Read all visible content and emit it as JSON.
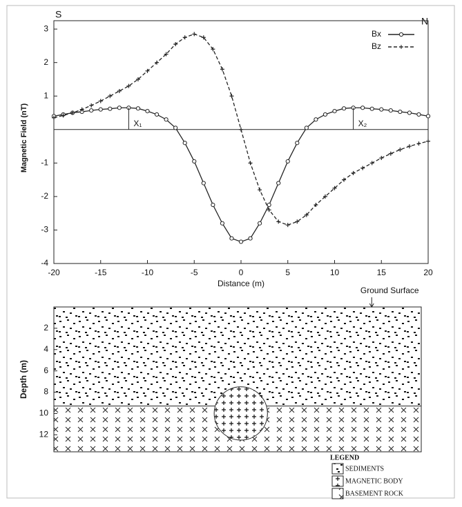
{
  "chart_data": [
    {
      "type": "line",
      "corner_labels": [
        "S",
        "N"
      ],
      "xlabel": "Distance (m)",
      "ylabel": "Magnetic Field (nT)",
      "x": [
        -20,
        -19,
        -18,
        -17,
        -16,
        -15,
        -14,
        -13,
        -12,
        -11,
        -10,
        -9,
        -8,
        -7,
        -6,
        -5,
        -4,
        -3,
        -2,
        -1,
        0,
        1,
        2,
        3,
        4,
        5,
        6,
        7,
        8,
        9,
        10,
        11,
        12,
        13,
        14,
        15,
        16,
        17,
        18,
        19,
        20
      ],
      "series": [
        {
          "name": "Bx",
          "color": "#222222",
          "marker": "circle",
          "dash": false,
          "values": [
            0.4,
            0.45,
            0.5,
            0.53,
            0.57,
            0.6,
            0.62,
            0.65,
            0.65,
            0.63,
            0.55,
            0.45,
            0.3,
            0.05,
            -0.4,
            -0.95,
            -1.6,
            -2.25,
            -2.8,
            -3.25,
            -3.35,
            -3.25,
            -2.8,
            -2.25,
            -1.6,
            -0.95,
            -0.4,
            0.05,
            0.3,
            0.45,
            0.55,
            0.63,
            0.65,
            0.65,
            0.62,
            0.6,
            0.57,
            0.53,
            0.5,
            0.45,
            0.4
          ]
        },
        {
          "name": "Bz",
          "color": "#222222",
          "marker": "plus",
          "dash": true,
          "values": [
            0.35,
            0.42,
            0.5,
            0.6,
            0.72,
            0.85,
            1.0,
            1.15,
            1.3,
            1.5,
            1.75,
            2.0,
            2.25,
            2.55,
            2.75,
            2.85,
            2.75,
            2.4,
            1.8,
            1.0,
            0,
            -1.0,
            -1.8,
            -2.4,
            -2.75,
            -2.85,
            -2.75,
            -2.55,
            -2.25,
            -2.0,
            -1.75,
            -1.5,
            -1.3,
            -1.15,
            -1.0,
            -0.85,
            -0.72,
            -0.6,
            -0.5,
            -0.42,
            -0.35
          ]
        }
      ],
      "annotations": [
        {
          "text": "X₁",
          "x": -12
        },
        {
          "text": "X₂",
          "x": 12
        }
      ],
      "xlim": [
        -20,
        20
      ],
      "xticks": [
        -20,
        -15,
        -10,
        -5,
        0,
        5,
        10,
        15,
        20
      ],
      "ylim": [
        -4,
        3.25
      ],
      "yticks": [
        -4,
        -3,
        -2,
        -1,
        1,
        2,
        3
      ],
      "legend": "upper right"
    },
    {
      "type": "section",
      "ylabel": "Depth (m)",
      "xlim": [
        -20,
        19.3
      ],
      "ylim": [
        0,
        13.6
      ],
      "yticks": [
        2,
        4,
        6,
        8,
        10,
        12
      ],
      "ground_surface": {
        "label": "Ground Surface",
        "x": 14
      },
      "interface_depth": 9.3,
      "body": {
        "x": 0,
        "depth": 10,
        "radius": 2.5
      },
      "legend": {
        "title": "LEGEND",
        "items": [
          "SEDIMENTS",
          "MAGNETIC BODY",
          "BASEMENT ROCK"
        ]
      }
    }
  ]
}
